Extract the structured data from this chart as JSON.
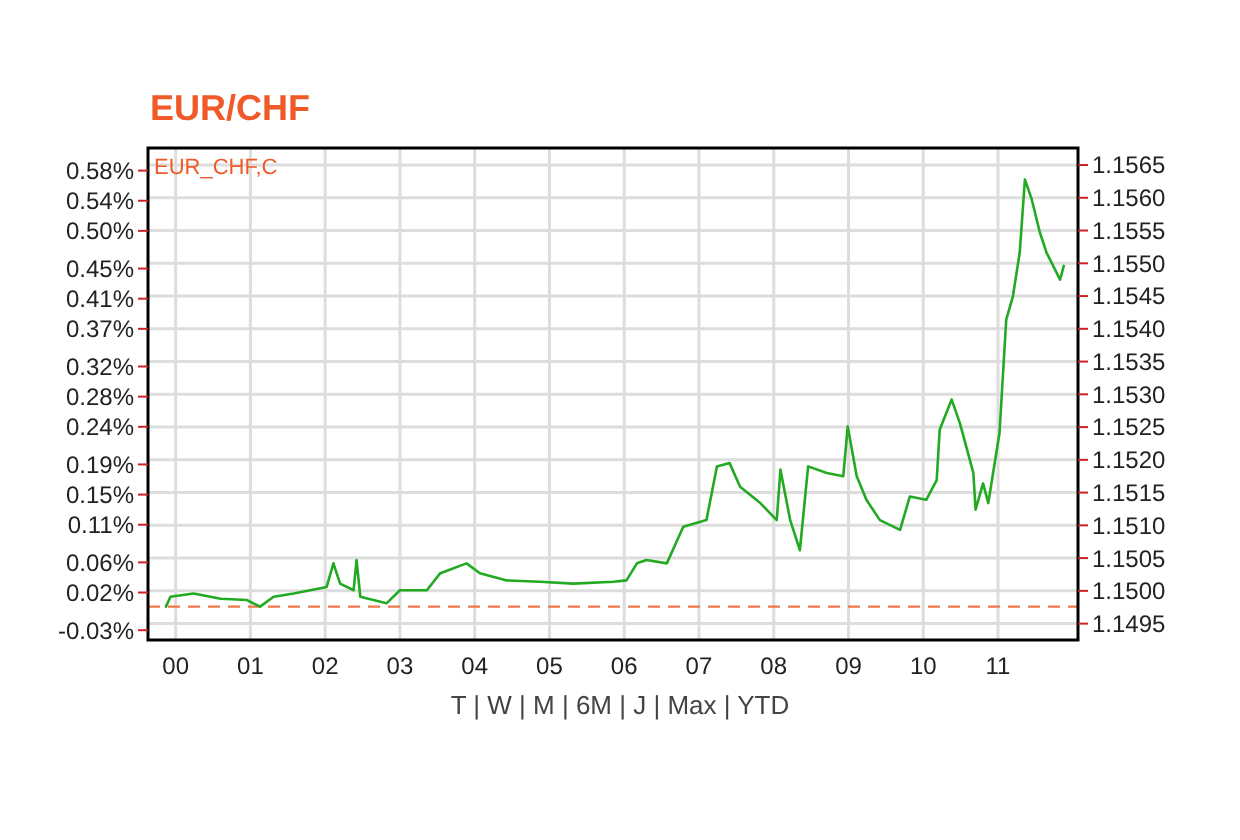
{
  "chart_data": {
    "type": "line",
    "title": "EUR/CHF",
    "annotations": [
      "EUR_CHF,C",
      "T | W | M | 6M | J | Max | YTD"
    ],
    "x": [
      -0.13,
      -0.07,
      0.24,
      0.6,
      0.95,
      1.13,
      1.31,
      1.58,
      2.02,
      2.11,
      2.2,
      2.38,
      2.42,
      2.47,
      2.82,
      3.0,
      3.36,
      3.54,
      3.89,
      4.07,
      4.43,
      4.87,
      5.32,
      5.86,
      6.03,
      6.17,
      6.3,
      6.57,
      6.79,
      7.1,
      7.24,
      7.41,
      7.55,
      7.82,
      8.04,
      8.09,
      8.22,
      8.35,
      8.46,
      8.71,
      8.93,
      8.99,
      9.11,
      9.24,
      9.42,
      9.69,
      9.82,
      10.04,
      10.18,
      10.22,
      10.38,
      10.49,
      10.67,
      10.7,
      10.8,
      10.87,
      11.02,
      11.11,
      11.2,
      11.29,
      11.36,
      11.45,
      11.56,
      11.65,
      11.83,
      11.88
    ],
    "series": [
      {
        "color": "#22aa22",
        "axis": "y2",
        "values": [
          1.14976,
          1.14991,
          1.14996,
          1.14988,
          1.14986,
          1.14976,
          1.14991,
          1.14996,
          1.15006,
          1.15042,
          1.15011,
          1.15001,
          1.15047,
          1.14991,
          1.14981,
          1.15001,
          1.15001,
          1.15027,
          1.15042,
          1.15027,
          1.15016,
          1.15014,
          1.15011,
          1.15014,
          1.15016,
          1.15042,
          1.15047,
          1.15042,
          1.15098,
          1.15108,
          1.1519,
          1.15195,
          1.15159,
          1.15134,
          1.15108,
          1.15185,
          1.15108,
          1.15062,
          1.1519,
          1.1518,
          1.15175,
          1.15251,
          1.15175,
          1.15139,
          1.15108,
          1.15093,
          1.15144,
          1.15139,
          1.15169,
          1.15246,
          1.15292,
          1.15256,
          1.1518,
          1.15124,
          1.15164,
          1.15134,
          1.15241,
          1.15414,
          1.1545,
          1.15516,
          1.15628,
          1.15598,
          1.15547,
          1.15516,
          1.15475,
          1.15496
        ]
      }
    ],
    "xlim": [
      -0.37,
      12.07
    ],
    "xticks": [
      {
        "value": 0,
        "label": "00"
      },
      {
        "value": 1,
        "label": "01"
      },
      {
        "value": 2,
        "label": "02"
      },
      {
        "value": 3,
        "label": "03"
      },
      {
        "value": 4,
        "label": "04"
      },
      {
        "value": 5,
        "label": "05"
      },
      {
        "value": 6,
        "label": "06"
      },
      {
        "value": 7,
        "label": "07"
      },
      {
        "value": 8,
        "label": "08"
      },
      {
        "value": 9,
        "label": "09"
      },
      {
        "value": 10,
        "label": "10"
      },
      {
        "value": 11,
        "label": "11"
      }
    ],
    "ylim": [
      -0.043,
      0.61
    ],
    "yticks": [
      {
        "value": -0.03,
        "label": "-0.03%"
      },
      {
        "value": 0.02,
        "label": "0.02%"
      },
      {
        "value": 0.06,
        "label": "0.06%"
      },
      {
        "value": 0.11,
        "label": "0.11%"
      },
      {
        "value": 0.15,
        "label": "0.15%"
      },
      {
        "value": 0.19,
        "label": "0.19%"
      },
      {
        "value": 0.24,
        "label": "0.24%"
      },
      {
        "value": 0.28,
        "label": "0.28%"
      },
      {
        "value": 0.32,
        "label": "0.32%"
      },
      {
        "value": 0.37,
        "label": "0.37%"
      },
      {
        "value": 0.41,
        "label": "0.41%"
      },
      {
        "value": 0.45,
        "label": "0.45%"
      },
      {
        "value": 0.5,
        "label": "0.50%"
      },
      {
        "value": 0.54,
        "label": "0.54%"
      },
      {
        "value": 0.58,
        "label": "0.58%"
      }
    ],
    "y2lim": [
      1.14925,
      1.15676
    ],
    "y2ticks": [
      {
        "value": 1.1495,
        "label": "1.1495"
      },
      {
        "value": 1.15,
        "label": "1.1500"
      },
      {
        "value": 1.1505,
        "label": "1.1505"
      },
      {
        "value": 1.151,
        "label": "1.1510"
      },
      {
        "value": 1.1515,
        "label": "1.1515"
      },
      {
        "value": 1.152,
        "label": "1.1520"
      },
      {
        "value": 1.1525,
        "label": "1.1525"
      },
      {
        "value": 1.153,
        "label": "1.1530"
      },
      {
        "value": 1.1535,
        "label": "1.1535"
      },
      {
        "value": 1.154,
        "label": "1.1540"
      },
      {
        "value": 1.1545,
        "label": "1.1545"
      },
      {
        "value": 1.155,
        "label": "1.1550"
      },
      {
        "value": 1.1555,
        "label": "1.1555"
      },
      {
        "value": 1.156,
        "label": "1.1560"
      },
      {
        "value": 1.1565,
        "label": "1.1565"
      }
    ],
    "ref_lines": [
      {
        "axis": "y2",
        "value": 1.14976,
        "color": "#f07848",
        "line_style": "dashed"
      }
    ],
    "grid": true,
    "marker": "none",
    "line_style": "solid"
  }
}
